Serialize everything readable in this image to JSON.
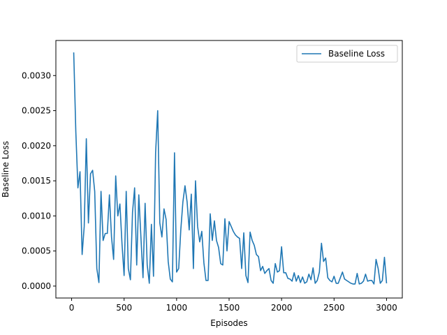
{
  "colors": {
    "series": "#1f77b4",
    "axes": "#000000",
    "background": "#ffffff"
  },
  "chart_data": {
    "type": "line",
    "title": "",
    "xlabel": "Episodes",
    "ylabel": "Baseline Loss",
    "xlim": [
      -150,
      3150
    ],
    "ylim": [
      -0.00017,
      0.0035
    ],
    "xticks": [
      0,
      500,
      1000,
      1500,
      2000,
      2500,
      3000
    ],
    "xtick_labels": [
      "0",
      "500",
      "1000",
      "1500",
      "2000",
      "2500",
      "3000"
    ],
    "yticks": [
      0.0,
      0.0005,
      0.001,
      0.0015,
      0.002,
      0.0025,
      0.003
    ],
    "ytick_labels": [
      "0.0000",
      "0.0005",
      "0.0010",
      "0.0015",
      "0.0020",
      "0.0025",
      "0.0030"
    ],
    "grid": false,
    "legend": {
      "position": "upper-right"
    },
    "series": [
      {
        "name": "Baseline Loss",
        "color": "#1f77b4",
        "x": [
          20,
          40,
          60,
          80,
          100,
          120,
          140,
          160,
          180,
          200,
          220,
          240,
          260,
          280,
          300,
          320,
          340,
          360,
          380,
          400,
          420,
          440,
          460,
          480,
          500,
          520,
          540,
          560,
          580,
          600,
          620,
          640,
          660,
          680,
          700,
          720,
          740,
          760,
          780,
          800,
          820,
          840,
          860,
          880,
          900,
          920,
          940,
          960,
          980,
          1000,
          1020,
          1040,
          1060,
          1080,
          1100,
          1120,
          1140,
          1160,
          1180,
          1200,
          1220,
          1240,
          1260,
          1280,
          1300,
          1320,
          1340,
          1360,
          1380,
          1400,
          1420,
          1440,
          1460,
          1480,
          1500,
          1520,
          1540,
          1560,
          1580,
          1600,
          1620,
          1640,
          1660,
          1680,
          1700,
          1720,
          1740,
          1760,
          1780,
          1800,
          1820,
          1840,
          1860,
          1880,
          1900,
          1920,
          1940,
          1960,
          1980,
          2000,
          2020,
          2040,
          2060,
          2080,
          2100,
          2120,
          2140,
          2160,
          2180,
          2200,
          2220,
          2240,
          2260,
          2280,
          2300,
          2320,
          2340,
          2360,
          2380,
          2400,
          2420,
          2440,
          2460,
          2480,
          2500,
          2520,
          2540,
          2560,
          2580,
          2600,
          2620,
          2640,
          2660,
          2680,
          2700,
          2720,
          2740,
          2760,
          2780,
          2800,
          2820,
          2840,
          2860,
          2880,
          2900,
          2920,
          2940,
          2960,
          2980,
          3000
        ],
        "y": [
          0.00333,
          0.0022,
          0.0014,
          0.00163,
          0.00045,
          0.00085,
          0.0021,
          0.0009,
          0.0016,
          0.00165,
          0.00135,
          0.00025,
          5e-05,
          0.00135,
          0.00065,
          0.00075,
          0.00075,
          0.0013,
          0.0007,
          0.00038,
          0.00157,
          0.001,
          0.00117,
          0.0006,
          0.00015,
          0.00135,
          0.00025,
          9e-05,
          0.00105,
          0.0014,
          0.0003,
          0.0013,
          0.0007,
          0.00012,
          0.00118,
          0.0003,
          4e-05,
          0.00088,
          0.00014,
          0.0019,
          0.0025,
          0.0009,
          0.0007,
          0.0011,
          0.00095,
          0.00035,
          0.0001,
          6e-05,
          0.0019,
          0.0002,
          0.00025,
          0.0008,
          0.0012,
          0.00143,
          0.0012,
          0.0008,
          0.00131,
          0.00025,
          0.0015,
          0.00085,
          0.00063,
          0.00078,
          0.00033,
          8e-05,
          8e-05,
          0.00103,
          0.00065,
          0.00093,
          0.00065,
          0.00055,
          0.00032,
          0.0003,
          0.00096,
          0.0005,
          0.00092,
          0.00085,
          0.00078,
          0.00073,
          0.0007,
          0.00068,
          0.00025,
          0.00076,
          0.00015,
          5e-05,
          0.00077,
          0.00065,
          0.00058,
          0.00045,
          0.00042,
          0.00022,
          0.00028,
          0.00018,
          0.00022,
          0.00025,
          8e-05,
          4e-05,
          0.00032,
          0.0002,
          0.00022,
          0.00056,
          0.00019,
          0.00019,
          0.00011,
          0.0001,
          7e-05,
          0.00019,
          7e-05,
          0.00015,
          5e-05,
          0.00013,
          4e-05,
          6e-05,
          0.00017,
          9e-05,
          0.00026,
          4e-05,
          8e-05,
          0.0002,
          0.00061,
          0.00035,
          0.0004,
          0.00012,
          8e-05,
          6e-05,
          0.00014,
          4e-05,
          4e-05,
          0.00012,
          0.0002,
          0.0001,
          8e-05,
          6e-05,
          4e-05,
          3e-05,
          3e-05,
          0.00018,
          3e-05,
          4e-05,
          7e-05,
          0.00017,
          7e-05,
          8e-05,
          8e-05,
          3e-05,
          0.00038,
          0.00025,
          4e-05,
          8e-05,
          0.00041,
          4e-05
        ]
      }
    ]
  }
}
